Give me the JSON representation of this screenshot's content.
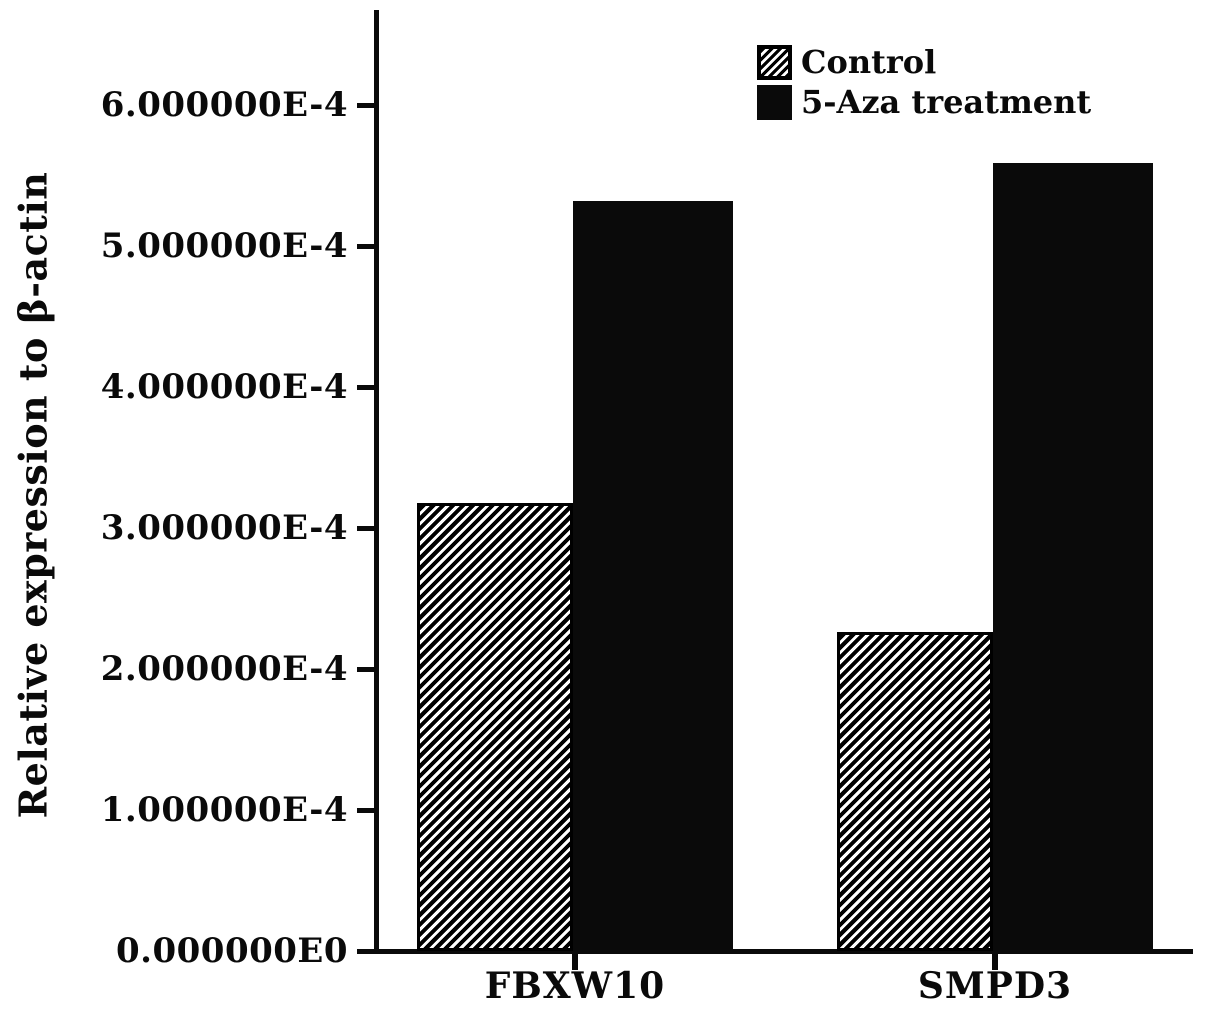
{
  "chart_data": {
    "type": "bar",
    "title": "",
    "xlabel": "",
    "ylabel": "Relative expression to β-actin",
    "categories": [
      "FBXW10",
      "SMPD3"
    ],
    "series": [
      {
        "name": "Control",
        "swatch": "hatched",
        "values": [
          0.000318,
          0.000226
        ]
      },
      {
        "name": "5-Aza treatment",
        "swatch": "solid-black",
        "values": [
          0.000532,
          0.000559
        ]
      }
    ],
    "y_ticks": [
      {
        "label": "0.000000E0",
        "value": 0
      },
      {
        "label": "1.000000E-4",
        "value": 0.0001
      },
      {
        "label": "2.000000E-4",
        "value": 0.0002
      },
      {
        "label": "3.000000E-4",
        "value": 0.0003
      },
      {
        "label": "4.000000E-4",
        "value": 0.0004
      },
      {
        "label": "5.000000E-4",
        "value": 0.0005
      },
      {
        "label": "6.000000E-4",
        "value": 0.0006
      }
    ],
    "ylim": [
      0,
      0.000667
    ],
    "grid": false,
    "legend_position": "top-right",
    "colors": {
      "bar": "#0a0a0a",
      "background": "#ffffff"
    }
  }
}
